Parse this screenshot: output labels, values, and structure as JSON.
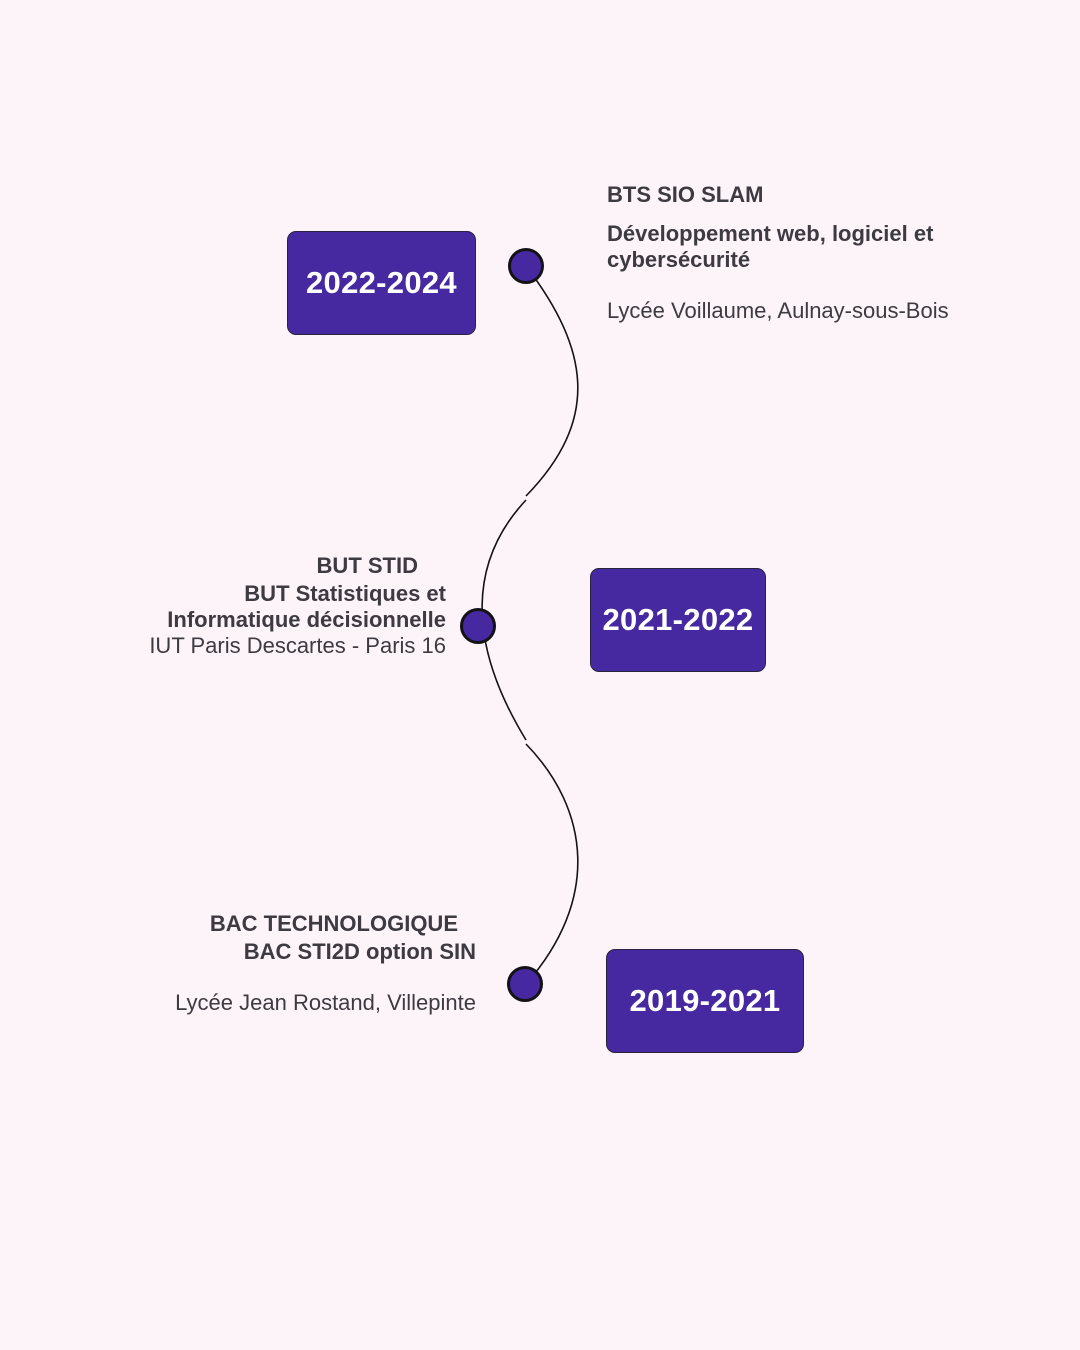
{
  "entries": [
    {
      "years": "2022-2024",
      "degree": "BTS SIO SLAM",
      "specialty_line1": "Développement web, logiciel et",
      "specialty_line2": "cybersécurité",
      "school": "Lycée Voillaume, Aulnay-sous-Bois"
    },
    {
      "years": "2021-2022",
      "degree": "BUT STID",
      "specialty_line1": "BUT Statistiques et",
      "specialty_line2": "Informatique décisionnelle",
      "school": "IUT Paris Descartes - Paris 16"
    },
    {
      "years": "2019-2021",
      "degree": "BAC TECHNOLOGIQUE",
      "specialty_line1": "BAC STI2D option  SIN",
      "school": "Lycée Jean Rostand, Villepinte"
    }
  ],
  "colors": {
    "background": "#fdf4f9",
    "accent": "#4628a0",
    "text": "#3d3a42"
  }
}
